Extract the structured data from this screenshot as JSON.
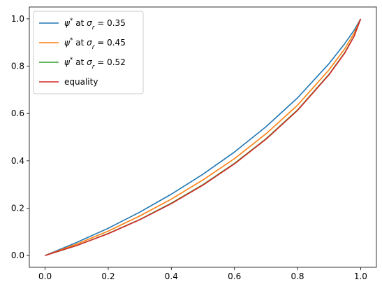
{
  "chart_data": {
    "type": "line",
    "title": "",
    "xlabel": "",
    "ylabel": "",
    "xlim": [
      -0.05,
      1.05
    ],
    "ylim": [
      -0.05,
      1.05
    ],
    "xticks": [
      "0.0",
      "0.2",
      "0.4",
      "0.6",
      "0.8",
      "1.0"
    ],
    "yticks": [
      "0.0",
      "0.2",
      "0.4",
      "0.6",
      "0.8",
      "1.0"
    ],
    "grid": false,
    "legend_position": "top-left",
    "series": [
      {
        "name_prefix": "ψ",
        "name_sup": "*",
        "name_mid": " at ",
        "name_sym": "σ",
        "name_sub": "r",
        "name_value": " = 0.35",
        "color": "#1f77b4",
        "x": [
          0.0,
          0.1,
          0.2,
          0.3,
          0.4,
          0.5,
          0.6,
          0.7,
          0.8,
          0.9,
          0.95,
          0.98,
          1.0
        ],
        "y": [
          0.0,
          0.055,
          0.115,
          0.183,
          0.259,
          0.343,
          0.437,
          0.544,
          0.666,
          0.811,
          0.896,
          0.953,
          1.0
        ]
      },
      {
        "name_prefix": "ψ",
        "name_sup": "*",
        "name_mid": " at ",
        "name_sym": "σ",
        "name_sub": "r",
        "name_value": " = 0.45",
        "color": "#ff7f0e",
        "x": [
          0.0,
          0.1,
          0.2,
          0.3,
          0.4,
          0.5,
          0.6,
          0.7,
          0.8,
          0.9,
          0.95,
          0.98,
          1.0
        ],
        "y": [
          0.0,
          0.048,
          0.103,
          0.167,
          0.238,
          0.319,
          0.409,
          0.514,
          0.635,
          0.785,
          0.874,
          0.941,
          1.0
        ]
      },
      {
        "name_prefix": "ψ",
        "name_sup": "*",
        "name_mid": " at ",
        "name_sym": "σ",
        "name_sub": "r",
        "name_value": " = 0.52",
        "color": "#2ca02c",
        "x": [
          0.0,
          0.1,
          0.2,
          0.3,
          0.4,
          0.5,
          0.6,
          0.7,
          0.8,
          0.9,
          0.95,
          0.98,
          1.0
        ],
        "y": [
          0.0,
          0.042,
          0.093,
          0.152,
          0.221,
          0.299,
          0.389,
          0.493,
          0.615,
          0.766,
          0.858,
          0.929,
          1.0
        ]
      },
      {
        "name": "equality",
        "color": "#d62728",
        "x": [
          0.0,
          0.1,
          0.2,
          0.3,
          0.4,
          0.5,
          0.6,
          0.7,
          0.8,
          0.9,
          0.95,
          0.98,
          1.0
        ],
        "y": [
          0.0,
          0.042,
          0.092,
          0.151,
          0.219,
          0.297,
          0.387,
          0.491,
          0.613,
          0.764,
          0.856,
          0.928,
          1.0
        ]
      }
    ]
  }
}
